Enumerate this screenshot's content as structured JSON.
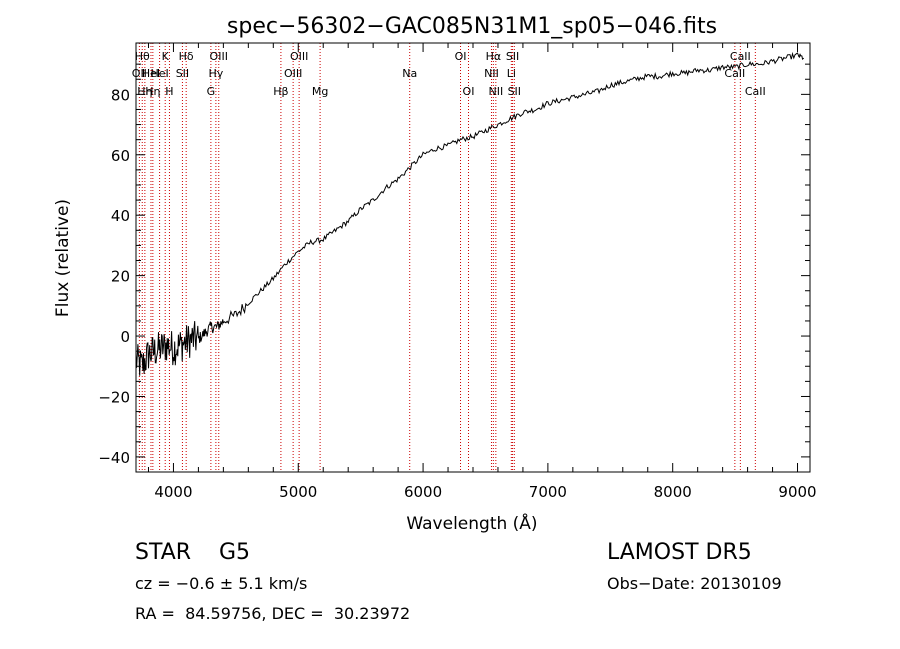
{
  "chart_data": {
    "type": "line",
    "title": "spec−56302−GAC085N31M1_sp05−046.fits",
    "xlabel": "Wavelength (Å)",
    "ylabel": "Flux (relative)",
    "xlim": [
      3700,
      9100
    ],
    "ylim": [
      -45,
      97
    ],
    "xticks": [
      4000,
      5000,
      6000,
      7000,
      8000,
      9000
    ],
    "yticks": [
      -40,
      -20,
      0,
      20,
      40,
      60,
      80
    ],
    "ytick_labels": [
      "−40",
      "−20",
      "0",
      "20",
      "40",
      "60",
      "80"
    ],
    "series": [
      {
        "color": "#000000",
        "x": [
          3700,
          3750,
          3800,
          3850,
          3900,
          3950,
          4000,
          4050,
          4100,
          4150,
          4200,
          4250,
          4300,
          4350,
          4400,
          4500,
          4600,
          4700,
          4800,
          4900,
          5000,
          5100,
          5200,
          5300,
          5400,
          5500,
          5600,
          5700,
          5800,
          5900,
          6000,
          6100,
          6200,
          6300,
          6400,
          6500,
          6600,
          6700,
          6800,
          6900,
          7000,
          7100,
          7200,
          7300,
          7400,
          7500,
          7600,
          7700,
          7800,
          7900,
          8000,
          8100,
          8200,
          8300,
          8400,
          8500,
          8600,
          8700,
          8800,
          8900,
          9000,
          9050
        ],
        "y": [
          -8,
          -10,
          -6,
          -5,
          -4,
          -3,
          -4,
          -3,
          -2,
          -1,
          -1,
          1,
          3,
          3,
          5,
          7,
          11,
          15,
          19,
          24,
          28,
          31,
          32,
          35,
          38,
          42,
          45,
          49,
          52,
          56,
          60,
          62,
          63,
          65,
          66,
          68,
          70,
          72,
          74,
          75,
          77,
          78,
          79,
          80,
          81,
          83,
          84,
          85,
          86,
          86,
          87,
          87,
          88,
          88,
          89,
          89,
          90,
          90,
          91,
          92,
          93,
          92
        ]
      }
    ],
    "line_labels": [
      {
        "wavelength": 3727,
        "label": "OII",
        "row": 1
      },
      {
        "wavelength": 3750,
        "label": "Hθ",
        "row": 0
      },
      {
        "wavelength": 3771,
        "label": "Hη",
        "row": 2
      },
      {
        "wavelength": 3820,
        "label": "HeI",
        "row": 1
      },
      {
        "wavelength": 3835,
        "label": "Hη",
        "row": 2
      },
      {
        "wavelength": 3889,
        "label": "HeI",
        "row": 1
      },
      {
        "wavelength": 3934,
        "label": "K",
        "row": 0
      },
      {
        "wavelength": 3968,
        "label": "H",
        "row": 2
      },
      {
        "wavelength": 4072,
        "label": "SII",
        "row": 1
      },
      {
        "wavelength": 4102,
        "label": "Hδ",
        "row": 0
      },
      {
        "wavelength": 4300,
        "label": "G",
        "row": 2
      },
      {
        "wavelength": 4340,
        "label": "Hγ",
        "row": 1
      },
      {
        "wavelength": 4363,
        "label": "OIII",
        "row": 0
      },
      {
        "wavelength": 4861,
        "label": "Hβ",
        "row": 2
      },
      {
        "wavelength": 4959,
        "label": "OIII",
        "row": 1
      },
      {
        "wavelength": 5007,
        "label": "OIII",
        "row": 0
      },
      {
        "wavelength": 5175,
        "label": "Mg",
        "row": 2
      },
      {
        "wavelength": 5893,
        "label": "Na",
        "row": 1
      },
      {
        "wavelength": 6300,
        "label": "OI",
        "row": 0
      },
      {
        "wavelength": 6364,
        "label": "OI",
        "row": 2
      },
      {
        "wavelength": 6548,
        "label": "NII",
        "row": 1
      },
      {
        "wavelength": 6563,
        "label": "Hα",
        "row": 0
      },
      {
        "wavelength": 6583,
        "label": "NII",
        "row": 2
      },
      {
        "wavelength": 6707,
        "label": "Li",
        "row": 1
      },
      {
        "wavelength": 6717,
        "label": "SII",
        "row": 0
      },
      {
        "wavelength": 6731,
        "label": "SII",
        "row": 2
      },
      {
        "wavelength": 8498,
        "label": "CaII",
        "row": 1
      },
      {
        "wavelength": 8542,
        "label": "CaII",
        "row": 0
      },
      {
        "wavelength": 8662,
        "label": "CaII",
        "row": 2
      }
    ],
    "line_marker_color": "#cc0000",
    "grid": false,
    "legend": "none"
  },
  "info": {
    "object_line": "STAR    G5",
    "cz_line": "cz = −0.6 ± 5.1 km/s",
    "radec_line": "RA =  84.59756, DEC =  30.23972",
    "survey_line": "LAMOST DR5",
    "date_line": "Obs−Date: 20130109"
  }
}
